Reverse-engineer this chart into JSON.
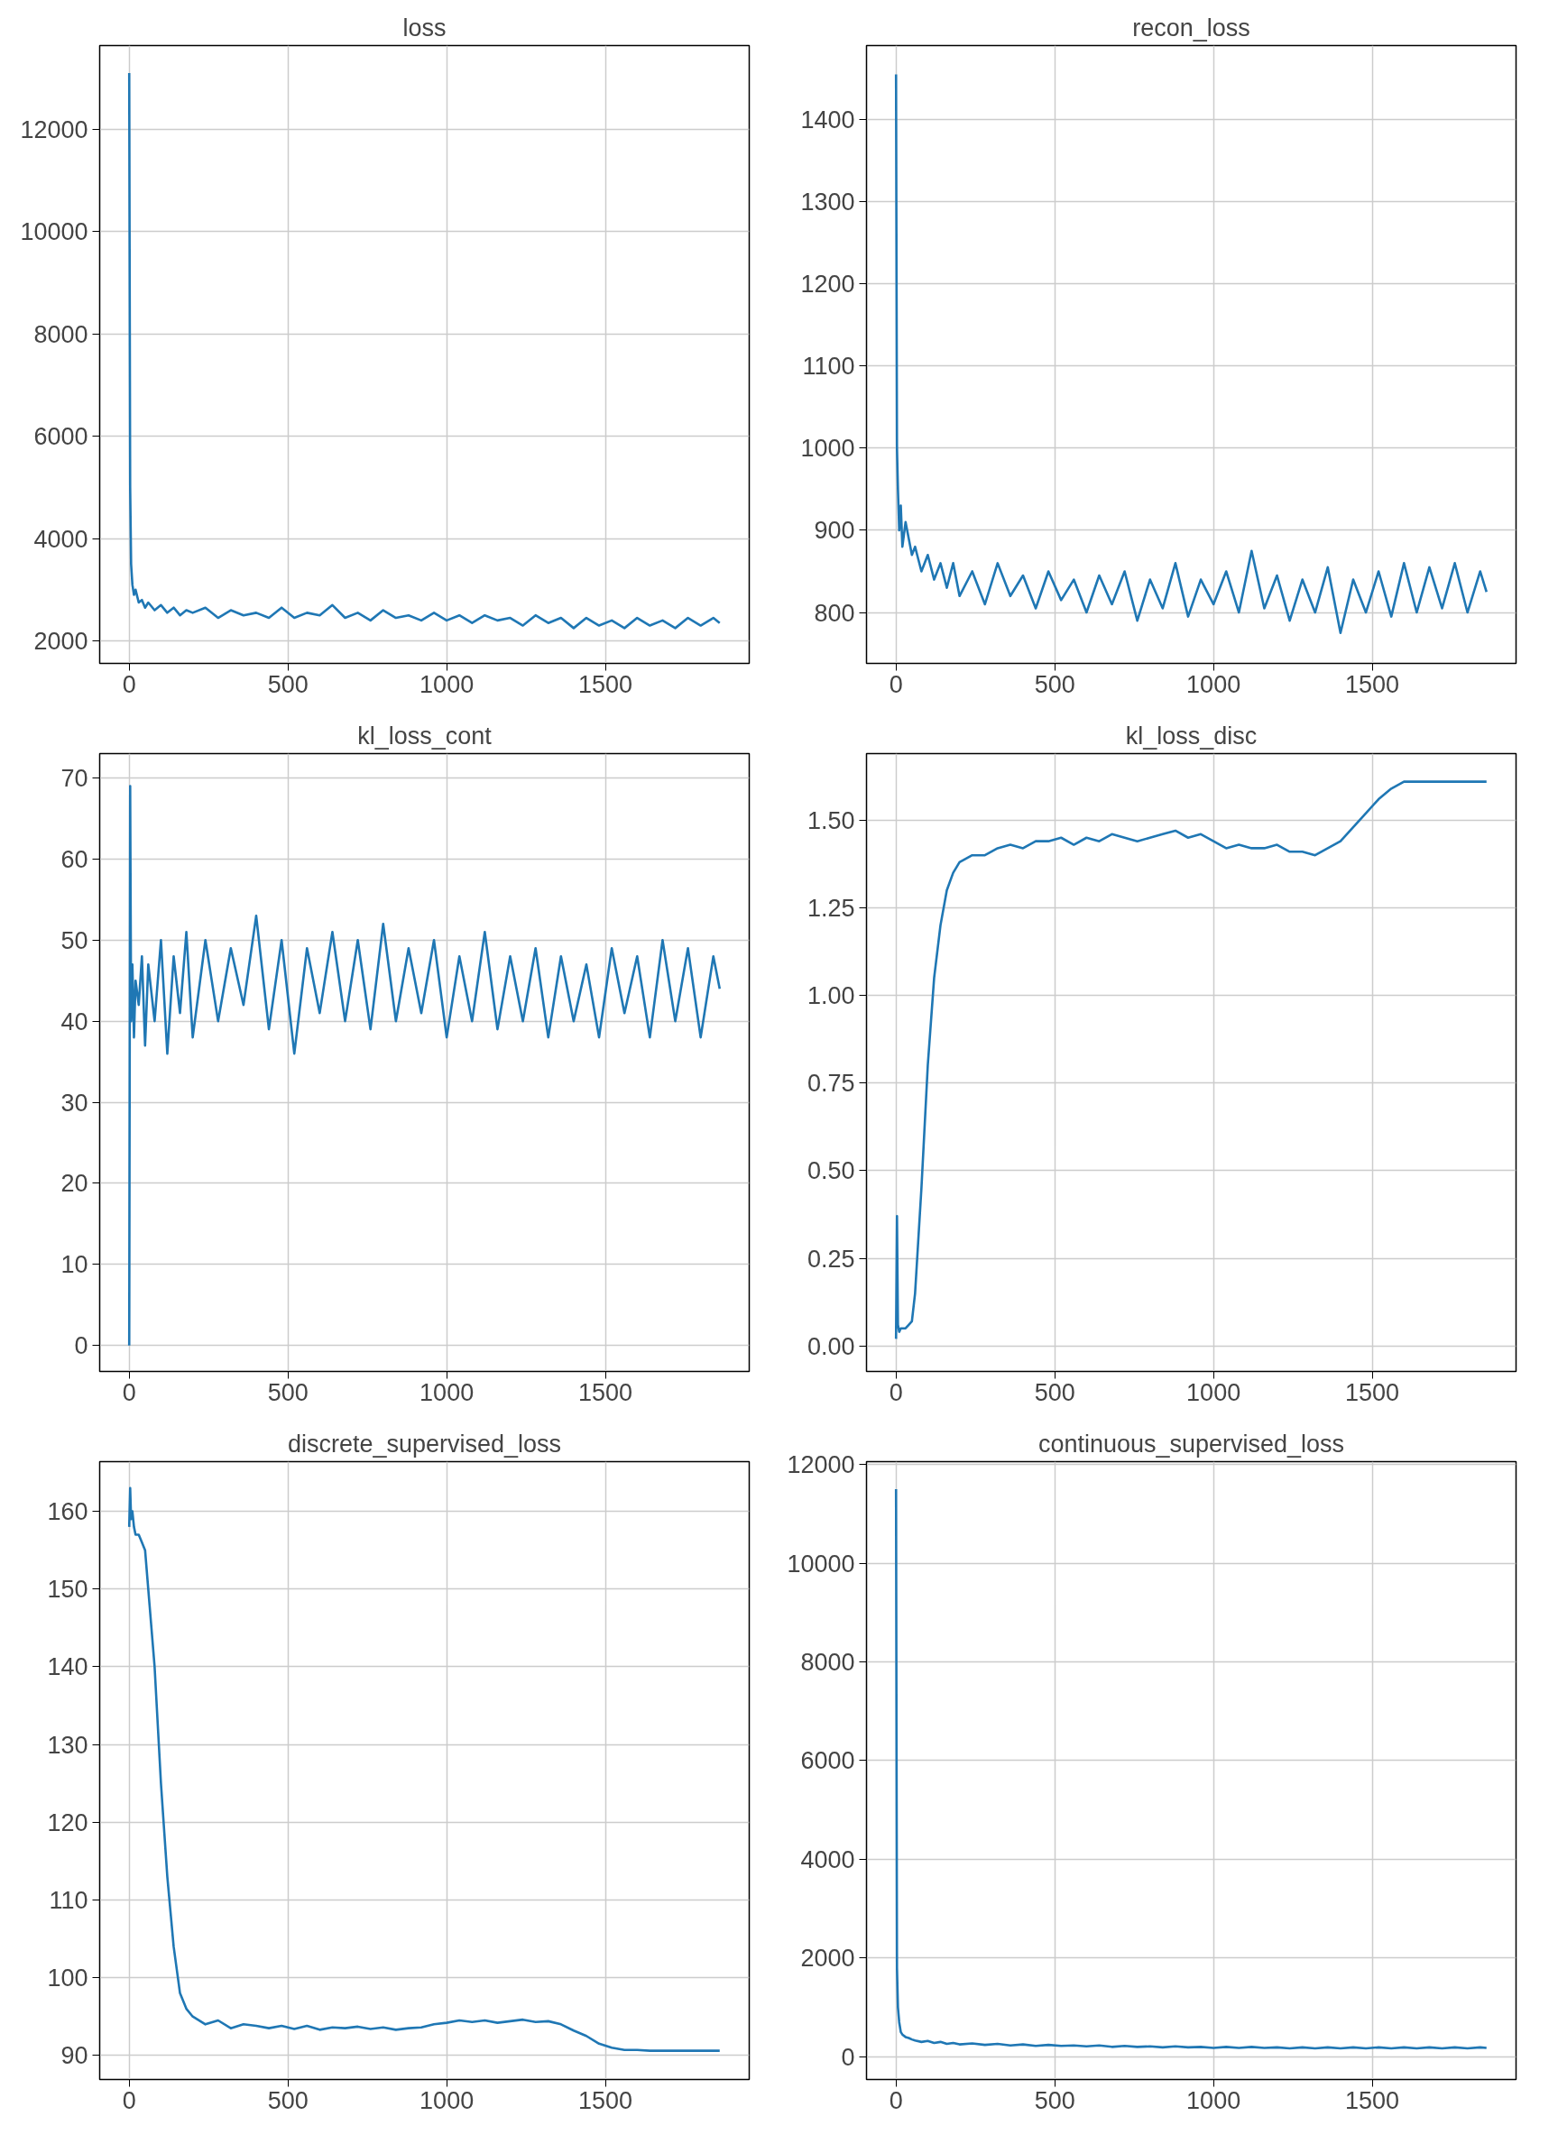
{
  "chart_data": [
    {
      "type": "line",
      "title": "loss",
      "x": [
        0,
        3,
        6,
        10,
        15,
        20,
        30,
        40,
        50,
        60,
        80,
        100,
        120,
        140,
        160,
        180,
        200,
        240,
        280,
        320,
        360,
        400,
        440,
        480,
        520,
        560,
        600,
        640,
        680,
        720,
        760,
        800,
        840,
        880,
        920,
        960,
        1000,
        1040,
        1080,
        1120,
        1160,
        1200,
        1240,
        1280,
        1320,
        1360,
        1400,
        1440,
        1480,
        1520,
        1560,
        1600,
        1640,
        1680,
        1720,
        1760,
        1800,
        1840,
        1860
      ],
      "series": [
        {
          "color": "#1f77b4",
          "values": [
            13100,
            5000,
            3500,
            3100,
            2900,
            3000,
            2750,
            2800,
            2650,
            2750,
            2600,
            2700,
            2550,
            2650,
            2500,
            2600,
            2550,
            2650,
            2450,
            2600,
            2500,
            2550,
            2450,
            2650,
            2450,
            2550,
            2500,
            2700,
            2450,
            2550,
            2400,
            2600,
            2450,
            2500,
            2400,
            2550,
            2400,
            2500,
            2350,
            2500,
            2400,
            2450,
            2300,
            2500,
            2350,
            2450,
            2250,
            2450,
            2300,
            2400,
            2250,
            2450,
            2300,
            2400,
            2250,
            2450,
            2300,
            2450,
            2350
          ]
        }
      ],
      "xlim": [
        -93,
        1953
      ],
      "xticks": [
        0,
        500,
        1000,
        1500
      ],
      "ylim": [
        1560,
        13640
      ],
      "yticks": [
        2000,
        4000,
        6000,
        8000,
        10000,
        12000
      ],
      "grid": true
    },
    {
      "type": "line",
      "title": "recon_loss",
      "x": [
        0,
        3,
        6,
        10,
        15,
        20,
        30,
        40,
        50,
        60,
        80,
        100,
        120,
        140,
        160,
        180,
        200,
        240,
        280,
        320,
        360,
        400,
        440,
        480,
        520,
        560,
        600,
        640,
        680,
        720,
        760,
        800,
        840,
        880,
        920,
        960,
        1000,
        1040,
        1080,
        1120,
        1160,
        1200,
        1240,
        1280,
        1320,
        1360,
        1400,
        1440,
        1480,
        1520,
        1560,
        1600,
        1640,
        1680,
        1720,
        1760,
        1800,
        1840,
        1860
      ],
      "series": [
        {
          "color": "#1f77b4",
          "values": [
            1455,
            1000,
            950,
            900,
            930,
            880,
            910,
            890,
            870,
            880,
            850,
            870,
            840,
            860,
            830,
            860,
            820,
            850,
            810,
            860,
            820,
            845,
            805,
            850,
            815,
            840,
            800,
            845,
            810,
            850,
            790,
            840,
            805,
            860,
            795,
            840,
            810,
            850,
            800,
            875,
            805,
            845,
            790,
            840,
            800,
            855,
            775,
            840,
            800,
            850,
            795,
            860,
            800,
            855,
            805,
            860,
            800,
            850,
            825
          ]
        }
      ],
      "xlim": [
        -93,
        1953
      ],
      "xticks": [
        0,
        500,
        1000,
        1500
      ],
      "ylim": [
        738,
        1490
      ],
      "yticks": [
        800,
        900,
        1000,
        1100,
        1200,
        1300,
        1400
      ],
      "grid": true
    },
    {
      "type": "line",
      "title": "kl_loss_cont",
      "x": [
        0,
        3,
        6,
        10,
        15,
        20,
        30,
        40,
        50,
        60,
        80,
        100,
        120,
        140,
        160,
        180,
        200,
        240,
        280,
        320,
        360,
        400,
        440,
        480,
        520,
        560,
        600,
        640,
        680,
        720,
        760,
        800,
        840,
        880,
        920,
        960,
        1000,
        1040,
        1080,
        1120,
        1160,
        1200,
        1240,
        1280,
        1320,
        1360,
        1400,
        1440,
        1480,
        1520,
        1560,
        1600,
        1640,
        1680,
        1720,
        1760,
        1800,
        1840,
        1860
      ],
      "series": [
        {
          "color": "#1f77b4",
          "values": [
            0,
            69,
            40,
            47,
            38,
            45,
            42,
            48,
            37,
            47,
            40,
            50,
            36,
            48,
            41,
            51,
            38,
            50,
            40,
            49,
            42,
            53,
            39,
            50,
            36,
            49,
            41,
            51,
            40,
            50,
            39,
            52,
            40,
            49,
            41,
            50,
            38,
            48,
            40,
            51,
            39,
            48,
            40,
            49,
            38,
            48,
            40,
            47,
            38,
            49,
            41,
            48,
            38,
            50,
            40,
            49,
            38,
            48,
            44
          ]
        }
      ],
      "xlim": [
        -93,
        1953
      ],
      "xticks": [
        0,
        500,
        1000,
        1500
      ],
      "ylim": [
        -3.2,
        73
      ],
      "yticks": [
        0,
        10,
        20,
        30,
        40,
        50,
        60,
        70
      ],
      "grid": true
    },
    {
      "type": "line",
      "title": "kl_loss_disc",
      "x": [
        0,
        3,
        6,
        10,
        15,
        20,
        30,
        40,
        50,
        60,
        80,
        100,
        120,
        140,
        160,
        180,
        200,
        240,
        280,
        320,
        360,
        400,
        440,
        480,
        520,
        560,
        600,
        640,
        680,
        720,
        760,
        800,
        840,
        880,
        920,
        960,
        1000,
        1040,
        1080,
        1120,
        1160,
        1200,
        1240,
        1280,
        1320,
        1360,
        1400,
        1440,
        1480,
        1520,
        1560,
        1600,
        1640,
        1680,
        1720,
        1760,
        1800,
        1840,
        1860
      ],
      "series": [
        {
          "color": "#1f77b4",
          "values": [
            0.02,
            0.37,
            0.06,
            0.04,
            0.05,
            0.05,
            0.05,
            0.06,
            0.07,
            0.15,
            0.45,
            0.8,
            1.05,
            1.2,
            1.3,
            1.35,
            1.38,
            1.4,
            1.4,
            1.42,
            1.43,
            1.42,
            1.44,
            1.44,
            1.45,
            1.43,
            1.45,
            1.44,
            1.46,
            1.45,
            1.44,
            1.45,
            1.46,
            1.47,
            1.45,
            1.46,
            1.44,
            1.42,
            1.43,
            1.42,
            1.42,
            1.43,
            1.41,
            1.41,
            1.4,
            1.42,
            1.44,
            1.48,
            1.52,
            1.56,
            1.59,
            1.61,
            1.61,
            1.61,
            1.61,
            1.61,
            1.61,
            1.61,
            1.61
          ]
        }
      ],
      "xlim": [
        -93,
        1953
      ],
      "xticks": [
        0,
        500,
        1000,
        1500
      ],
      "ylim": [
        -0.073,
        1.69
      ],
      "yticks": [
        {
          "value": 0,
          "label": "0.00"
        },
        {
          "value": 0.25,
          "label": "0.25"
        },
        {
          "value": 0.5,
          "label": "0.50"
        },
        {
          "value": 0.75,
          "label": "0.75"
        },
        {
          "value": 1,
          "label": "1.00"
        },
        {
          "value": 1.25,
          "label": "1.25"
        },
        {
          "value": 1.5,
          "label": "1.50"
        }
      ],
      "grid": true
    },
    {
      "type": "line",
      "title": "discrete_supervised_loss",
      "x": [
        0,
        3,
        6,
        10,
        15,
        20,
        30,
        40,
        50,
        60,
        80,
        100,
        120,
        140,
        160,
        180,
        200,
        240,
        280,
        320,
        360,
        400,
        440,
        480,
        520,
        560,
        600,
        640,
        680,
        720,
        760,
        800,
        840,
        880,
        920,
        960,
        1000,
        1040,
        1080,
        1120,
        1160,
        1200,
        1240,
        1280,
        1320,
        1360,
        1400,
        1440,
        1480,
        1520,
        1560,
        1600,
        1640,
        1680,
        1720,
        1760,
        1800,
        1840,
        1860
      ],
      "series": [
        {
          "color": "#1f77b4",
          "values": [
            158,
            163,
            159,
            160,
            158,
            157,
            157,
            156,
            155,
            150,
            140,
            125,
            113,
            104,
            98,
            96,
            95,
            94,
            94.5,
            93.5,
            94,
            93.8,
            93.5,
            93.8,
            93.4,
            93.8,
            93.3,
            93.6,
            93.5,
            93.7,
            93.4,
            93.6,
            93.3,
            93.5,
            93.6,
            94,
            94.2,
            94.5,
            94.3,
            94.5,
            94.2,
            94.4,
            94.6,
            94.3,
            94.4,
            94,
            93.2,
            92.5,
            91.5,
            91,
            90.7,
            90.7,
            90.6,
            90.6,
            90.6,
            90.6,
            90.6,
            90.6,
            90.6
          ]
        }
      ],
      "xlim": [
        -93,
        1953
      ],
      "xticks": [
        0,
        500,
        1000,
        1500
      ],
      "ylim": [
        86.9,
        166.4
      ],
      "yticks": [
        90,
        100,
        110,
        120,
        130,
        140,
        150,
        160
      ],
      "grid": true
    },
    {
      "type": "line",
      "title": "continuous_supervised_loss",
      "x": [
        0,
        3,
        6,
        10,
        15,
        20,
        30,
        40,
        50,
        60,
        80,
        100,
        120,
        140,
        160,
        180,
        200,
        240,
        280,
        320,
        360,
        400,
        440,
        480,
        520,
        560,
        600,
        640,
        680,
        720,
        760,
        800,
        840,
        880,
        920,
        960,
        1000,
        1040,
        1080,
        1120,
        1160,
        1200,
        1240,
        1280,
        1320,
        1360,
        1400,
        1440,
        1480,
        1520,
        1560,
        1600,
        1640,
        1680,
        1720,
        1760,
        1800,
        1840,
        1860
      ],
      "series": [
        {
          "color": "#1f77b4",
          "values": [
            11500,
            1800,
            1000,
            700,
            500,
            450,
            400,
            380,
            350,
            330,
            300,
            320,
            280,
            300,
            260,
            280,
            250,
            270,
            240,
            260,
            230,
            250,
            220,
            240,
            220,
            230,
            210,
            230,
            200,
            220,
            200,
            210,
            190,
            210,
            190,
            200,
            180,
            200,
            180,
            200,
            180,
            190,
            170,
            190,
            170,
            190,
            170,
            190,
            170,
            190,
            170,
            190,
            170,
            190,
            170,
            190,
            170,
            190,
            180
          ]
        }
      ],
      "xlim": [
        -93,
        1953
      ],
      "xticks": [
        0,
        500,
        1000,
        1500
      ],
      "ylim": [
        -461,
        12058
      ],
      "yticks": [
        0,
        2000,
        4000,
        6000,
        8000,
        10000,
        12000
      ],
      "grid": true
    }
  ]
}
